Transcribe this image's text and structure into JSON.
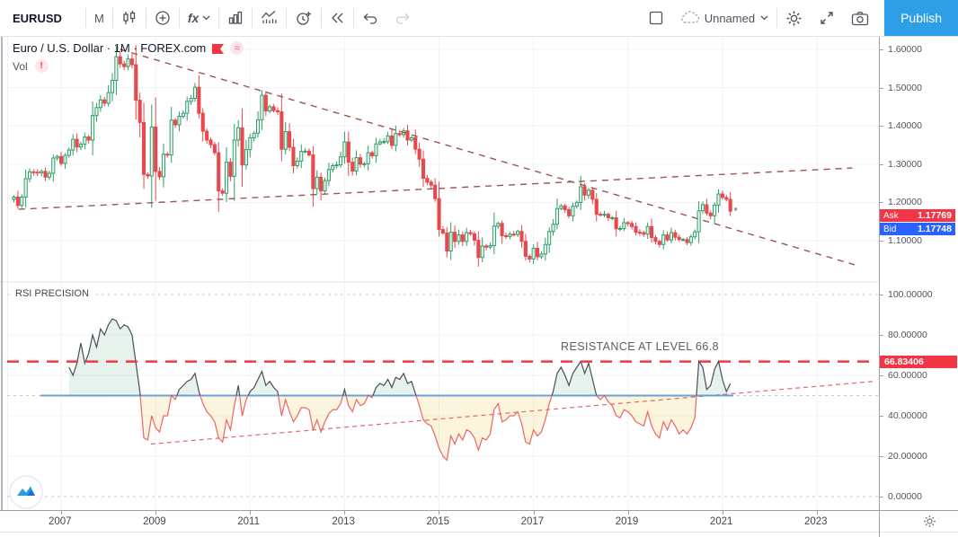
{
  "toolbar": {
    "symbol": "EURUSD",
    "interval": "M",
    "fx_label": "fx",
    "layout_name": "Unnamed",
    "publish_label": "Publish"
  },
  "chart": {
    "title": "Euro / U.S. Dollar · 1M · FOREX.com",
    "vol_label": "Vol",
    "vol_warning": "!",
    "data_mode_symbol": "≈",
    "ask_label": "Ask",
    "ask_value": "1.17769",
    "bid_label": "Bid",
    "bid_value": "1.17748",
    "price_ticks": [
      "1.60000",
      "1.50000",
      "1.40000",
      "1.30000",
      "1.20000",
      "1.10000"
    ]
  },
  "rsi_pane": {
    "name": "RSI PRECISION",
    "annotation": "RESISTANCE AT LEVEL 66.8",
    "level_label": "66.83406",
    "axis_ticks": [
      "100.00000",
      "80.00000",
      "60.00000",
      "40.00000",
      "20.00000",
      "0.00000"
    ]
  },
  "time_axis": {
    "ticks": [
      "2007",
      "2009",
      "2011",
      "2013",
      "2015",
      "2017",
      "2019",
      "2021",
      "2023"
    ]
  },
  "colors": {
    "up_candle": "#2f9e68",
    "up_fill": "#eaf6ef",
    "down_candle": "#e8494d",
    "trendline_brown": "#9c5550",
    "resistance_red": "#f23645",
    "midline_blue": "#5b9bd5",
    "rsi_above": "#4a4e59",
    "rsi_below": "#ef6363",
    "rsi_fill_above": "#3f9e63",
    "rsi_fill_below": "#e3c93f",
    "trendline_pink": "#e06a6a",
    "ask_bg": "#f23645",
    "bid_bg": "#2962ff",
    "publish_bg": "#2e9fe6",
    "grid": "#f0f3fa"
  },
  "chart_data": [
    {
      "type": "candlestick",
      "symbol": "EURUSD",
      "timeframe": "1M",
      "start": "2006-01",
      "ylim": [
        1.03,
        1.65
      ],
      "monthly_closes": [
        1.214,
        1.192,
        1.214,
        1.262,
        1.28,
        1.279,
        1.277,
        1.281,
        1.266,
        1.276,
        1.316,
        1.32,
        1.302,
        1.323,
        1.337,
        1.365,
        1.345,
        1.352,
        1.371,
        1.363,
        1.427,
        1.448,
        1.468,
        1.459,
        1.487,
        1.519,
        1.581,
        1.562,
        1.555,
        1.575,
        1.56,
        1.467,
        1.409,
        1.273,
        1.269,
        1.397,
        1.281,
        1.267,
        1.326,
        1.324,
        1.415,
        1.403,
        1.425,
        1.433,
        1.464,
        1.472,
        1.501,
        1.433,
        1.386,
        1.363,
        1.351,
        1.33,
        1.23,
        1.224,
        1.305,
        1.268,
        1.363,
        1.395,
        1.298,
        1.338,
        1.369,
        1.381,
        1.416,
        1.48,
        1.439,
        1.45,
        1.44,
        1.437,
        1.339,
        1.385,
        1.344,
        1.296,
        1.308,
        1.333,
        1.334,
        1.324,
        1.236,
        1.266,
        1.23,
        1.257,
        1.286,
        1.296,
        1.298,
        1.319,
        1.358,
        1.305,
        1.282,
        1.317,
        1.3,
        1.301,
        1.33,
        1.322,
        1.353,
        1.358,
        1.359,
        1.374,
        1.349,
        1.38,
        1.377,
        1.387,
        1.363,
        1.369,
        1.339,
        1.313,
        1.263,
        1.253,
        1.245,
        1.21,
        1.129,
        1.12,
        1.073,
        1.122,
        1.098,
        1.115,
        1.098,
        1.121,
        1.118,
        1.101,
        1.056,
        1.086,
        1.083,
        1.087,
        1.138,
        1.145,
        1.113,
        1.111,
        1.117,
        1.116,
        1.124,
        1.098,
        1.059,
        1.052,
        1.08,
        1.058,
        1.065,
        1.09,
        1.124,
        1.143,
        1.184,
        1.191,
        1.181,
        1.165,
        1.19,
        1.2,
        1.241,
        1.219,
        1.232,
        1.208,
        1.169,
        1.168,
        1.169,
        1.16,
        1.16,
        1.131,
        1.132,
        1.147,
        1.145,
        1.137,
        1.122,
        1.121,
        1.117,
        1.137,
        1.108,
        1.098,
        1.09,
        1.115,
        1.102,
        1.121,
        1.109,
        1.103,
        1.103,
        1.095,
        1.11,
        1.123,
        1.178,
        1.194,
        1.172,
        1.165,
        1.193,
        1.222,
        1.213,
        1.208,
        1.177
      ],
      "trendlines": [
        {
          "name": "descending-resistance",
          "from": [
            2008.25,
            1.6
          ],
          "to": [
            2023.8,
            1.037
          ]
        },
        {
          "name": "ascending-support",
          "from": [
            2006.1,
            1.182
          ],
          "to": [
            2023.75,
            1.29
          ]
        }
      ],
      "last_price": 1.17769
    },
    {
      "type": "line",
      "name": "RSI PRECISION",
      "start": "2007-03",
      "start_index": 14,
      "ylim": [
        0,
        100
      ],
      "midline": 50,
      "resistance_level": 66.83406,
      "values": [
        64,
        60,
        66,
        76,
        66,
        71,
        80,
        74,
        83,
        80,
        85,
        88,
        87,
        83,
        85,
        84,
        80,
        66,
        52,
        29,
        28,
        40,
        34,
        32,
        40,
        40,
        50,
        48,
        53,
        55,
        57,
        58,
        61,
        52,
        46,
        42,
        40,
        37,
        29,
        27,
        38,
        33,
        45,
        55,
        40,
        48,
        52,
        54,
        58,
        62,
        55,
        57,
        54,
        52,
        40,
        48,
        42,
        37,
        40,
        44,
        44,
        43,
        33,
        38,
        32,
        37,
        41,
        43,
        43,
        46,
        53,
        45,
        42,
        48,
        45,
        46,
        50,
        49,
        54,
        56,
        55,
        58,
        54,
        59,
        58,
        61,
        56,
        57,
        51,
        45,
        38,
        36,
        35,
        30,
        24,
        20,
        18,
        30,
        26,
        31,
        28,
        33,
        32,
        29,
        23,
        29,
        28,
        31,
        43,
        46,
        37,
        38,
        40,
        40,
        42,
        36,
        27,
        26,
        33,
        30,
        32,
        38,
        46,
        52,
        61,
        64,
        60,
        55,
        61,
        64,
        67,
        61,
        66,
        58,
        50,
        48,
        50,
        47,
        45,
        40,
        39,
        43,
        42,
        40,
        37,
        36,
        35,
        42,
        35,
        31,
        29,
        37,
        33,
        38,
        35,
        31,
        33,
        31,
        34,
        39,
        67,
        64,
        53,
        55,
        63,
        67,
        58,
        52,
        56
      ],
      "trendline": {
        "name": "rsi-ascending",
        "from": [
          2008.9,
          26
        ],
        "to": [
          2024.2,
          57
        ]
      }
    }
  ]
}
